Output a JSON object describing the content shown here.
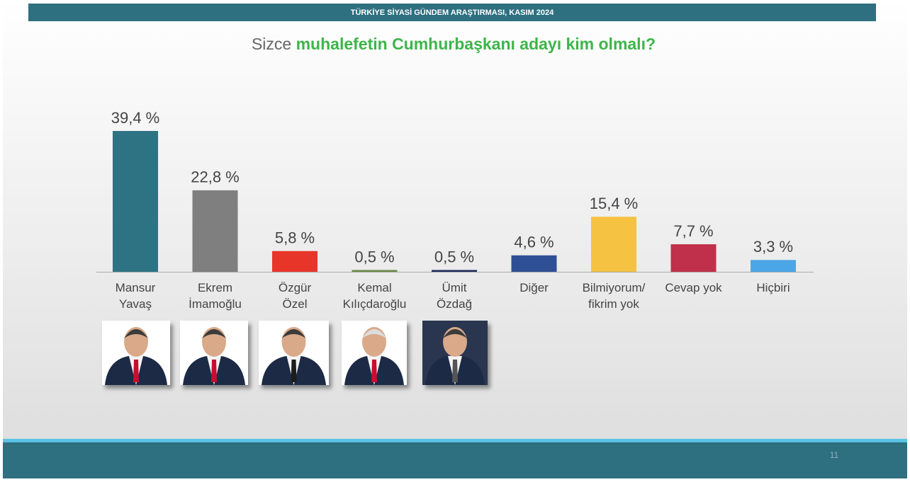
{
  "header": "TÜRKİYE SİYASİ GÜNDEM ARAŞTIRMASI, KASIM 2024",
  "page_number": "11",
  "chart_data": {
    "type": "bar",
    "title_prefix": "Sizce",
    "title_emphasis": "muhalefetin Cumhurbaşkanı adayı kim olmalı?",
    "categories": [
      "Mansur\nYavaş",
      "Ekrem\nİmamoğlu",
      "Özgür\nÖzel",
      "Kemal\nKılıçdaroğlu",
      "Ümit\nÖzdağ",
      "Diğer",
      "Bilmiyorum/\nfikrim yok",
      "Cevap yok",
      "Hiçbiri"
    ],
    "values": [
      39.4,
      22.8,
      5.8,
      0.5,
      0.5,
      4.6,
      15.4,
      7.7,
      3.3
    ],
    "value_labels": [
      "39,4 %",
      "22,8 %",
      "5,8 %",
      "0,5 %",
      "0,5 %",
      "4,6 %",
      "15,4 %",
      "7,7 %",
      "3,3 %"
    ],
    "colors": [
      "#2e7383",
      "#7f7f7f",
      "#e8352a",
      "#6a8a4a",
      "#1f2d5c",
      "#2f4f94",
      "#f5c242",
      "#c0304a",
      "#4aa6e6"
    ]
  }
}
